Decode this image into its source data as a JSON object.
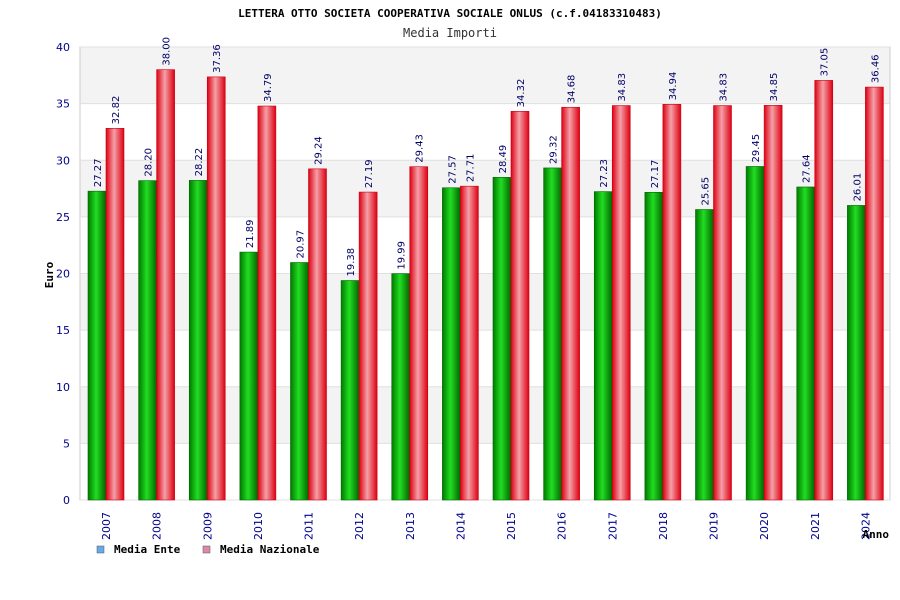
{
  "chart_data": {
    "type": "bar",
    "title": "LETTERA OTTO SOCIETA COOPERATIVA SOCIALE ONLUS (c.f.04183310483)",
    "subtitle": "Media Importi",
    "xlabel": "Anno",
    "ylabel": "Euro",
    "ylim": [
      0,
      40
    ],
    "yticks": [
      0,
      5,
      10,
      15,
      20,
      25,
      30,
      35,
      40
    ],
    "categories": [
      "2007",
      "2008",
      "2009",
      "2010",
      "2011",
      "2012",
      "2013",
      "2014",
      "2015",
      "2016",
      "2017",
      "2018",
      "2019",
      "2020",
      "2021",
      "2024"
    ],
    "series": [
      {
        "name": "Media Ente",
        "color": "#00aa00",
        "legend_color": "#66aaee",
        "values": [
          27.27,
          28.2,
          28.22,
          21.89,
          20.97,
          19.38,
          19.99,
          27.57,
          28.49,
          29.32,
          27.23,
          27.17,
          25.65,
          29.45,
          27.64,
          26.01
        ],
        "labels": [
          "27.27",
          "28.20",
          "28.22",
          "21.89",
          "20.97",
          "19.38",
          "19.99",
          "27.57",
          "28.49",
          "29.32",
          "27.23",
          "27.17",
          "25.65",
          "29.45",
          "27.64",
          "26.01"
        ]
      },
      {
        "name": "Media Nazionale",
        "color": "#ee1122",
        "legend_color": "#dd88aa",
        "values": [
          32.82,
          38.0,
          37.36,
          34.79,
          29.24,
          27.19,
          29.43,
          27.71,
          34.32,
          34.68,
          34.83,
          34.94,
          34.83,
          34.85,
          37.05,
          36.46
        ],
        "labels": [
          "32.82",
          "38.00",
          "37.36",
          "34.79",
          "29.24",
          "27.19",
          "29.43",
          "27.71",
          "34.32",
          "34.68",
          "34.83",
          "34.94",
          "34.83",
          "34.85",
          "37.05",
          "36.46"
        ]
      }
    ],
    "grid": true,
    "legend": "bottom-left"
  }
}
